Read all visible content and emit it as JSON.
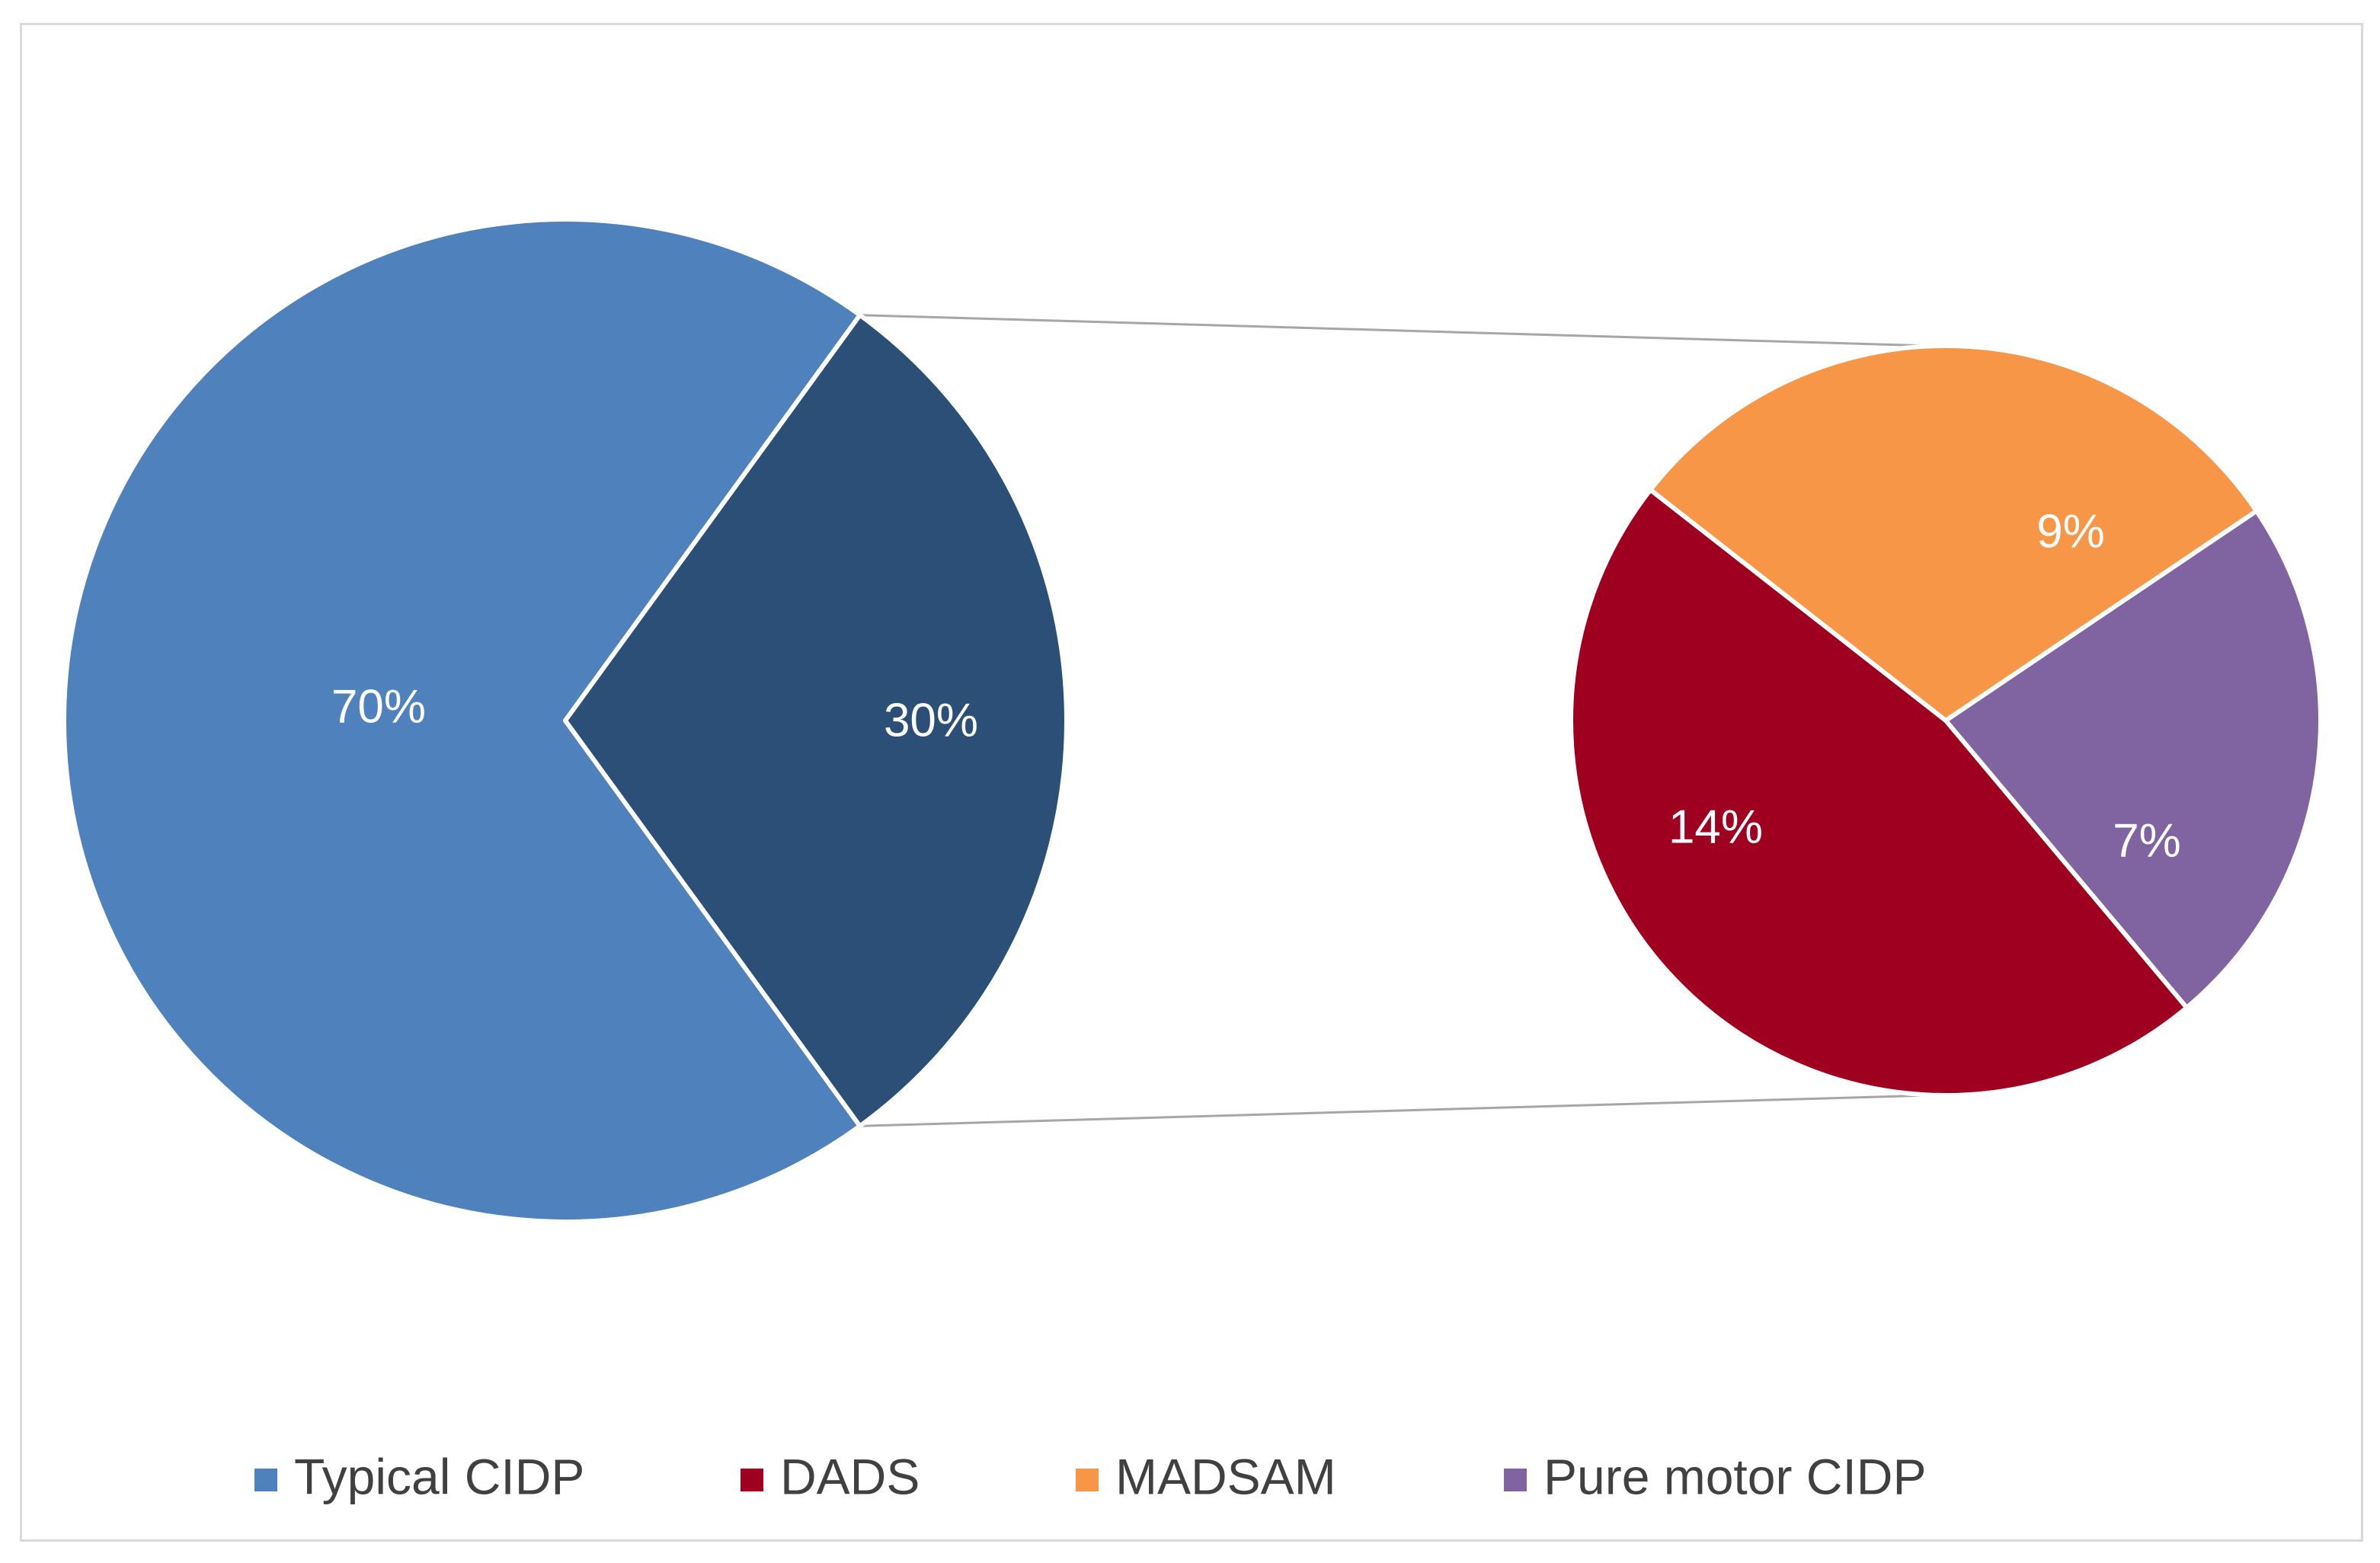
{
  "chart_data": {
    "type": "pie",
    "subtype": "pie-of-pie",
    "title": "",
    "primary_pie": {
      "slices": [
        {
          "name": "Typical CIDP",
          "value": 70,
          "label": "70%",
          "color": "#4f81bd"
        },
        {
          "name": "",
          "value": 30,
          "label": "30%",
          "color": "#2c4f77"
        }
      ]
    },
    "secondary_pie": {
      "slices": [
        {
          "name": "MADSAM",
          "value": 9,
          "label": "9%",
          "color": "#f79646"
        },
        {
          "name": "Pure motor CIDP",
          "value": 7,
          "label": "7%",
          "color": "#8064a2"
        },
        {
          "name": "DADS",
          "value": 14,
          "label": "14%",
          "color": "#a00020"
        }
      ]
    },
    "legend": {
      "position": "bottom",
      "entries": [
        {
          "name": "Typical CIDP",
          "color": "#4f81bd"
        },
        {
          "name": "DADS",
          "color": "#a00020"
        },
        {
          "name": "MADSAM",
          "color": "#f79646"
        },
        {
          "name": "Pure motor CIDP",
          "color": "#8064a2"
        }
      ]
    },
    "connector_color": "#a6a6a6",
    "border_color": "#d9d9d9"
  }
}
